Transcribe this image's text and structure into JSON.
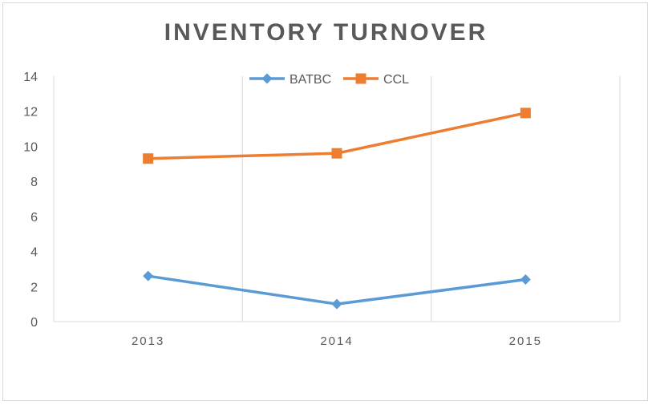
{
  "chart_data": {
    "type": "line",
    "title": "INVENTORY TURNOVER",
    "xlabel": "",
    "ylabel": "",
    "categories": [
      "2013",
      "2014",
      "2015"
    ],
    "yticks": [
      "0",
      "2",
      "4",
      "6",
      "8",
      "10",
      "12",
      "14"
    ],
    "ylim": [
      0,
      14
    ],
    "grid": "vertical",
    "legend_position": "top",
    "series": [
      {
        "name": "BATBC",
        "values": [
          2.6,
          1.0,
          2.4
        ],
        "color": "#5b9bd5",
        "marker": "diamond"
      },
      {
        "name": "CCL",
        "values": [
          9.3,
          9.6,
          11.9
        ],
        "color": "#ed7d31",
        "marker": "square"
      }
    ]
  }
}
